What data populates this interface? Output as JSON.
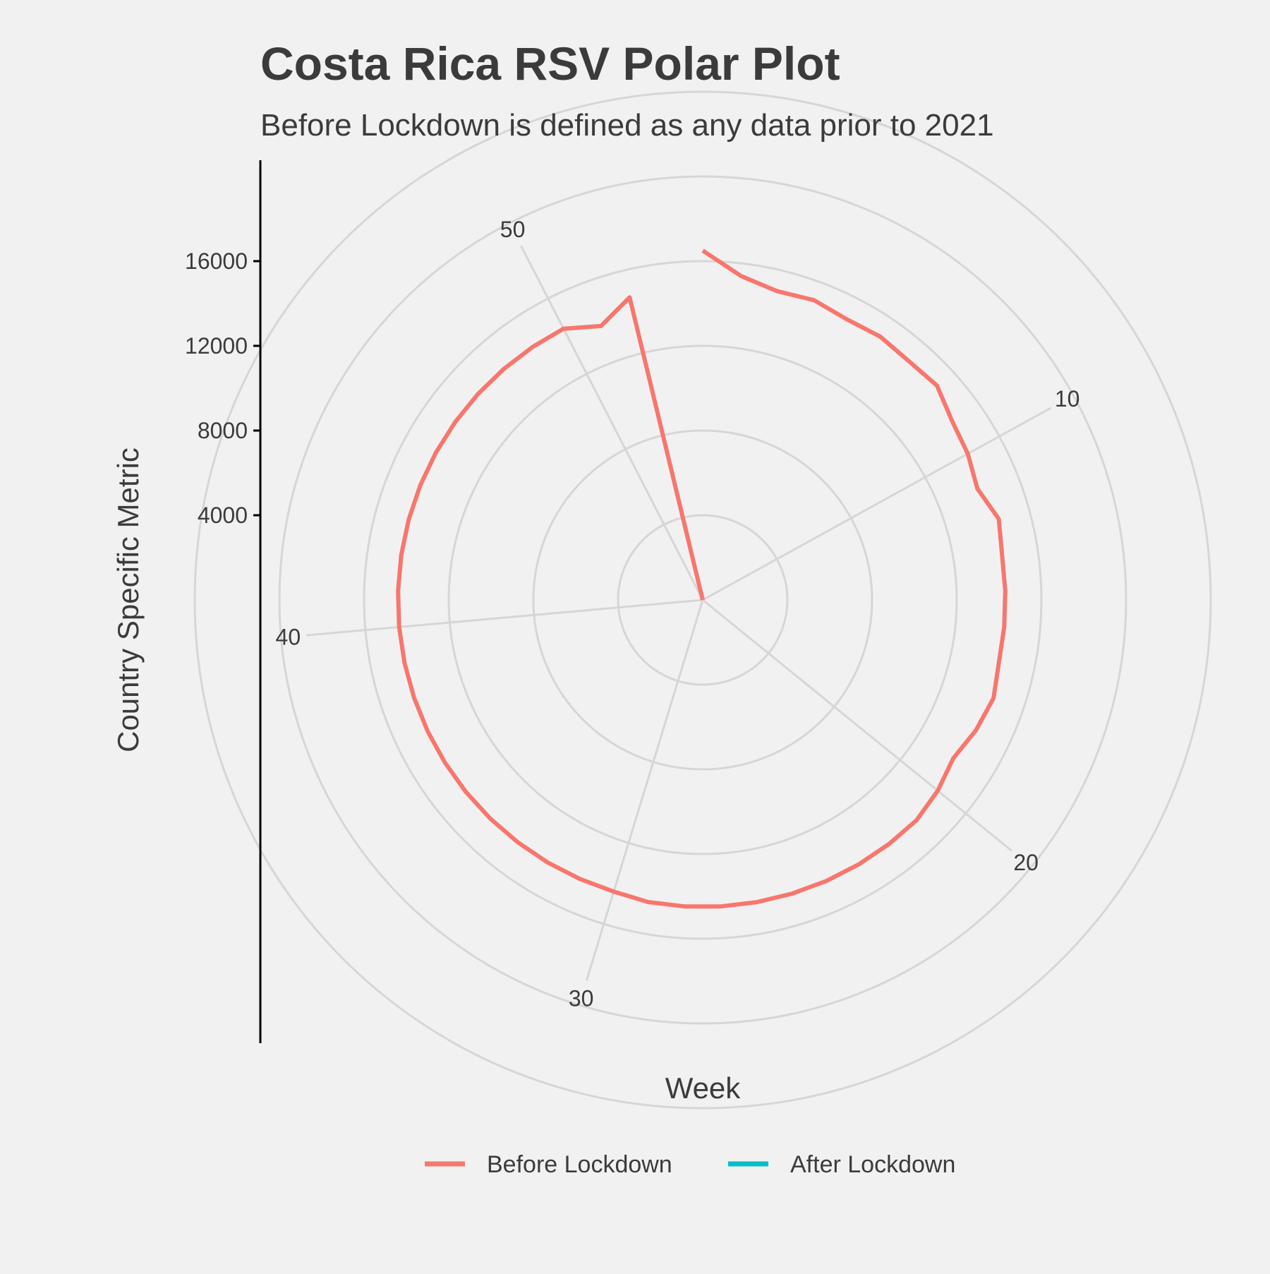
{
  "chart_data": {
    "type": "line",
    "coordinate_system": "polar",
    "title": "Costa Rica RSV Polar Plot",
    "subtitle": "Before Lockdown is defined as any data prior to 2021",
    "xlabel": "Week",
    "ylabel": "Country Specific Metric",
    "x_ticks": [
      10,
      20,
      30,
      40,
      50
    ],
    "y_ticks": [
      4000,
      8000,
      12000,
      16000
    ],
    "grid": true,
    "legend_position": "bottom",
    "colors": {
      "Before Lockdown": "#f8766d",
      "After Lockdown": "#00bfc4"
    },
    "series": [
      {
        "name": "Before Lockdown",
        "x": [
          1,
          2,
          3,
          4,
          5,
          6,
          7,
          8,
          9,
          10,
          11,
          12,
          13,
          14,
          15,
          16,
          17,
          18,
          19,
          20,
          21,
          22,
          23,
          24,
          25,
          26,
          27,
          28,
          29,
          30,
          31,
          32,
          33,
          34,
          35,
          36,
          37,
          38,
          39,
          40,
          41,
          42,
          43,
          44,
          45,
          46,
          47,
          48,
          49,
          50,
          51,
          52,
          53
        ],
        "values": [
          16500,
          15400,
          15000,
          15100,
          14900,
          15000,
          14900,
          15000,
          14500,
          14300,
          14000,
          14500,
          14300,
          14300,
          14300,
          14300,
          14500,
          14300,
          14000,
          14300,
          14500,
          14500,
          14500,
          14500,
          14500,
          14500,
          14500,
          14500,
          14500,
          14400,
          14400,
          14400,
          14400,
          14400,
          14400,
          14400,
          14400,
          14400,
          14400,
          14400,
          14400,
          14400,
          14400,
          14400,
          14400,
          14400,
          14400,
          14400,
          14400,
          14400,
          13800,
          14700,
          0
        ]
      },
      {
        "name": "After Lockdown",
        "x": [
          1,
          2,
          3
        ],
        "values": [
          0,
          0,
          0
        ]
      }
    ]
  }
}
